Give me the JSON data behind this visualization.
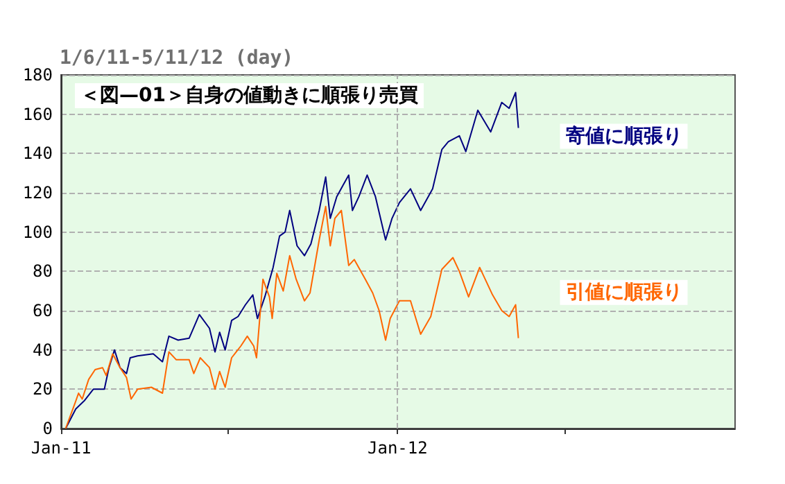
{
  "chart_data": {
    "type": "line",
    "title": "1/6/11-5/11/12 (day)",
    "annotations": [
      "＜図—01＞自身の値動きに順張り売買"
    ],
    "xlim": [
      "2011-01-01",
      "2013-01-01"
    ],
    "xticks": [
      {
        "value": "2011-01-01",
        "label": "Jan-11"
      },
      {
        "value": "2011-07-01",
        "label": null
      },
      {
        "value": "2012-01-01",
        "label": "Jan-12"
      },
      {
        "value": "2012-07-01",
        "label": null
      }
    ],
    "ylim": [
      0,
      180
    ],
    "yticks": [
      0,
      20,
      40,
      60,
      80,
      100,
      120,
      140,
      160,
      180
    ],
    "grid": "y",
    "legend": false,
    "marker": "none",
    "line_style": "solid",
    "ref_lines": [
      {
        "axis": "x",
        "value": "2012-01-01",
        "color": "#b0b0b0",
        "line_style": "dashed"
      }
    ],
    "series": [
      {
        "name": "寄値に順張り",
        "color": "#000080",
        "x": [
          "2011-01-06",
          "2011-01-17",
          "2011-01-26",
          "2011-02-05",
          "2011-02-17",
          "2011-02-22",
          "2011-02-28",
          "2011-03-06",
          "2011-03-13",
          "2011-03-17",
          "2011-03-25",
          "2011-04-11",
          "2011-04-21",
          "2011-04-28",
          "2011-05-08",
          "2011-05-20",
          "2011-05-31",
          "2011-06-11",
          "2011-06-17",
          "2011-06-22",
          "2011-06-28",
          "2011-07-05",
          "2011-07-12",
          "2011-07-20",
          "2011-07-28",
          "2011-08-02",
          "2011-08-10",
          "2011-08-19",
          "2011-08-26",
          "2011-09-01",
          "2011-09-06",
          "2011-09-14",
          "2011-09-22",
          "2011-09-29",
          "2011-10-08",
          "2011-10-15",
          "2011-10-20",
          "2011-10-27",
          "2011-11-03",
          "2011-11-09",
          "2011-11-13",
          "2011-11-20",
          "2011-11-29",
          "2011-12-08",
          "2011-12-19",
          "2011-12-26",
          "2012-01-03",
          "2012-01-15",
          "2012-01-26",
          "2012-02-08",
          "2012-02-18",
          "2012-02-25",
          "2012-03-08",
          "2012-03-15",
          "2012-03-28",
          "2012-04-11",
          "2012-04-23",
          "2012-05-01",
          "2012-05-08",
          "2012-05-11"
        ],
        "values": [
          0,
          10,
          14,
          20,
          20,
          31,
          40,
          31,
          28,
          36,
          37,
          38,
          34,
          47,
          45,
          46,
          58,
          51,
          39,
          49,
          40,
          55,
          57,
          63,
          68,
          56,
          67,
          82,
          98,
          100,
          111,
          93,
          88,
          94,
          111,
          128,
          107,
          118,
          124,
          129,
          111,
          118,
          129,
          118,
          96,
          107,
          115,
          122,
          111,
          122,
          142,
          146,
          149,
          141,
          162,
          151,
          166,
          163,
          171,
          153
        ]
      },
      {
        "name": "引値に順張り",
        "color": "#ff6600",
        "x": [
          "2011-01-06",
          "2011-01-17",
          "2011-01-20",
          "2011-01-24",
          "2011-01-31",
          "2011-02-07",
          "2011-02-15",
          "2011-02-19",
          "2011-02-26",
          "2011-03-06",
          "2011-03-13",
          "2011-03-18",
          "2011-03-25",
          "2011-04-09",
          "2011-04-21",
          "2011-04-28",
          "2011-05-06",
          "2011-05-20",
          "2011-05-25",
          "2011-06-01",
          "2011-06-11",
          "2011-06-17",
          "2011-06-22",
          "2011-06-28",
          "2011-07-05",
          "2011-07-15",
          "2011-07-22",
          "2011-07-29",
          "2011-08-01",
          "2011-08-08",
          "2011-08-15",
          "2011-08-18",
          "2011-08-23",
          "2011-08-30",
          "2011-09-06",
          "2011-09-13",
          "2011-09-22",
          "2011-09-28",
          "2011-10-08",
          "2011-10-15",
          "2011-10-20",
          "2011-10-25",
          "2011-11-01",
          "2011-11-09",
          "2011-11-15",
          "2011-11-27",
          "2011-12-05",
          "2011-12-12",
          "2011-12-19",
          "2011-12-24",
          "2012-01-03",
          "2012-01-15",
          "2012-01-26",
          "2012-02-06",
          "2012-02-18",
          "2012-03-01",
          "2012-03-08",
          "2012-03-18",
          "2012-03-30",
          "2012-04-13",
          "2012-04-23",
          "2012-05-01",
          "2012-05-08",
          "2012-05-11"
        ],
        "values": [
          0,
          14,
          18,
          15,
          25,
          30,
          31,
          27,
          38,
          31,
          26,
          15,
          20,
          21,
          18,
          39,
          35,
          35,
          28,
          36,
          31,
          20,
          29,
          21,
          36,
          42,
          47,
          42,
          36,
          76,
          67,
          56,
          79,
          70,
          88,
          76,
          65,
          69,
          96,
          113,
          93,
          107,
          111,
          83,
          86,
          76,
          69,
          60,
          45,
          56,
          65,
          65,
          48,
          57,
          81,
          87,
          80,
          67,
          82,
          68,
          60,
          57,
          63,
          46
        ]
      }
    ]
  }
}
